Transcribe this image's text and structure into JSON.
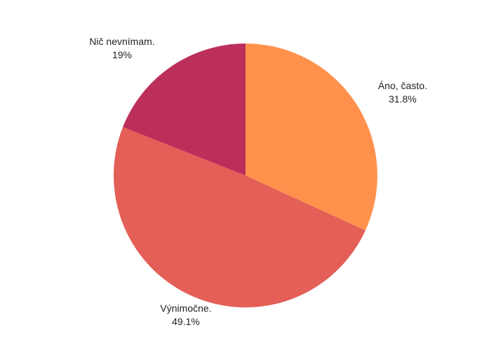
{
  "chart_data": {
    "type": "pie",
    "title": "",
    "direction": "clockwise",
    "start": "top",
    "slices": [
      {
        "label": "Áno, často.",
        "value": 31.8,
        "value_text": "31.8%",
        "color": "#FF914D"
      },
      {
        "label": "Výnimočne.",
        "value": 49.1,
        "value_text": "49.1%",
        "color": "#E35F57"
      },
      {
        "label": "Nič nevnímam.",
        "value": 19,
        "value_text": "19%",
        "color": "#BC2F5B"
      }
    ]
  }
}
